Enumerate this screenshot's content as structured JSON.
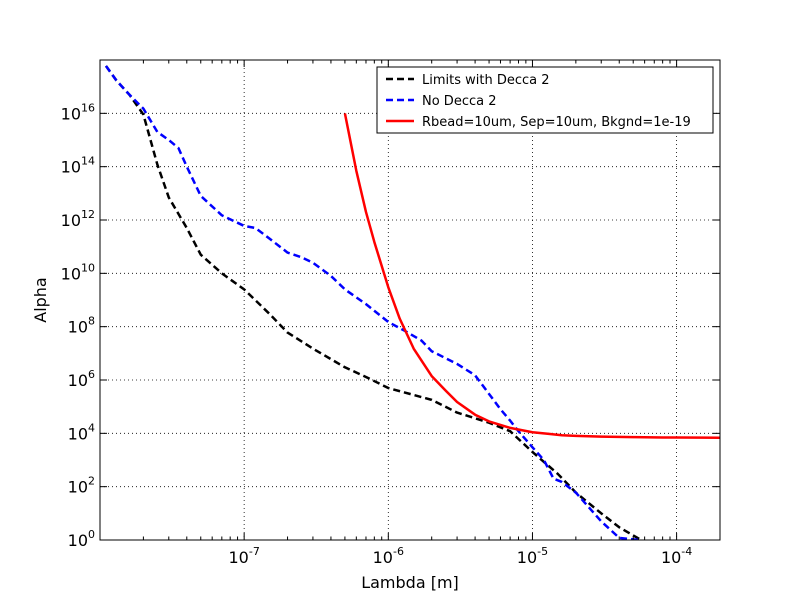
{
  "chart_data": {
    "type": "line",
    "title": "",
    "xlabel": "Lambda [m]",
    "ylabel": "Alpha",
    "xscale": "log",
    "yscale": "log",
    "xlim": [
      1e-08,
      0.0002
    ],
    "ylim": [
      1,
      1e+18
    ],
    "grid": true,
    "legend_position": "top-right",
    "x_ticks": [
      {
        "value": 1e-07,
        "label": "10",
        "exp": "-7"
      },
      {
        "value": 1e-06,
        "label": "10",
        "exp": "-6"
      },
      {
        "value": 1e-05,
        "label": "10",
        "exp": "-5"
      },
      {
        "value": 0.0001,
        "label": "10",
        "exp": "-4"
      }
    ],
    "y_ticks": [
      {
        "value": 1,
        "label": "10",
        "exp": "0"
      },
      {
        "value": 100,
        "label": "10",
        "exp": "2"
      },
      {
        "value": 10000,
        "label": "10",
        "exp": "4"
      },
      {
        "value": 1000000,
        "label": "10",
        "exp": "6"
      },
      {
        "value": 100000000,
        "label": "10",
        "exp": "8"
      },
      {
        "value": 10000000000,
        "label": "10",
        "exp": "10"
      },
      {
        "value": 1000000000000,
        "label": "10",
        "exp": "12"
      },
      {
        "value": 100000000000000,
        "label": "10",
        "exp": "14"
      },
      {
        "value": 10000000000000000,
        "label": "10",
        "exp": "16"
      }
    ],
    "series": [
      {
        "name": "Limits with Decca 2",
        "color": "#000000",
        "style": "dashed",
        "x": [
          1.1e-08,
          1.3e-08,
          1.6e-08,
          2e-08,
          2.5e-08,
          3e-08,
          4e-08,
          5e-08,
          7e-08,
          1e-07,
          1.5e-07,
          2e-07,
          3e-07,
          5e-07,
          7e-07,
          1e-06,
          2e-06,
          3e-06,
          5e-06,
          7e-06,
          1e-05,
          1.5e-05,
          2e-05,
          3e-05,
          4e-05,
          5.5e-05
        ],
        "y": [
          6e+17,
          1.7e+17,
          5e+16,
          9000000000000000.0,
          120000000000000.0,
          7000000000000.0,
          500000000000.0,
          50000000000.0,
          10000000000.0,
          2500000000.0,
          300000000.0,
          60000000.0,
          15000000.0,
          3000000.0,
          1300000.0,
          500000,
          180000,
          60000,
          25000,
          12000,
          2000,
          300,
          60,
          10,
          3,
          1.1
        ]
      },
      {
        "name": "No Decca 2",
        "color": "#0000ff",
        "style": "dashed",
        "x": [
          1.1e-08,
          1.3e-08,
          1.6e-08,
          2e-08,
          2.5e-08,
          3e-08,
          3.5e-08,
          4e-08,
          5e-08,
          7e-08,
          1e-07,
          1.2e-07,
          1.5e-07,
          2e-07,
          2.5e-07,
          3e-07,
          4e-07,
          5e-07,
          7e-07,
          1e-06,
          1.3e-06,
          1.7e-06,
          2e-06,
          3e-06,
          4e-06,
          5e-06,
          6e-06,
          7e-06,
          8e-06,
          1e-05,
          1.2e-05,
          1.4e-05,
          1.6e-05,
          2e-05,
          3e-05,
          4e-05,
          5.5e-05
        ],
        "y": [
          6e+17,
          1.7e+17,
          5e+16,
          1.5e+16,
          2000000000000000.0,
          1000000000000000.0,
          500000000000000.0,
          100000000000000.0,
          8000000000000.0,
          1500000000000.0,
          600000000000.0,
          500000000000.0,
          200000000000.0,
          60000000000.0,
          40000000000.0,
          25000000000.0,
          8000000000.0,
          2500000000.0,
          700000000.0,
          150000000.0,
          70000000.0,
          30000000.0,
          12000000.0,
          4000000.0,
          1500000.0,
          300000,
          80000,
          30000,
          12000,
          3000,
          1000,
          200,
          150,
          60,
          5,
          1.2,
          1
        ]
      },
      {
        "name": "Rbead=10um, Sep=10um, Bkgnd=1e-19",
        "color": "#ff0000",
        "style": "solid",
        "x": [
          5e-07,
          6e-07,
          7e-07,
          8e-07,
          1e-06,
          1.2e-06,
          1.5e-06,
          2e-06,
          2.5e-06,
          3e-06,
          4e-06,
          5e-06,
          7e-06,
          1e-05,
          1.3e-05,
          1.6e-05,
          2e-05,
          3e-05,
          5e-05,
          8e-05,
          0.0001,
          0.00015,
          0.0002
        ],
        "y": [
          1e+16,
          70000000000000.0,
          2000000000000.0,
          150000000000.0,
          3000000000.0,
          200000000.0,
          15000000.0,
          1400000.0,
          400000,
          150000,
          50000,
          28000,
          16000,
          11000,
          9500,
          8500,
          8000,
          7500,
          7200,
          7000,
          7000,
          6900,
          6800
        ]
      }
    ]
  }
}
